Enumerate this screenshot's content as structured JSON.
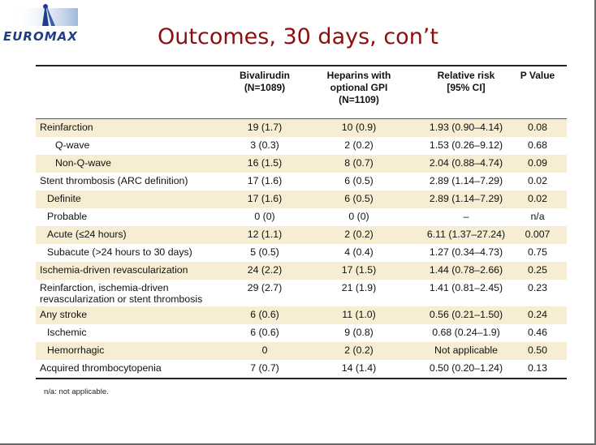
{
  "logo": {
    "text": "EUROMAX"
  },
  "title": "Outcomes, 30 days, con’t",
  "table": {
    "headers": [
      "",
      "Bivalirudin\n(N=1089)",
      "Heparins with\noptional GPI\n(N=1109)",
      "Relative risk\n[95% CI]",
      "P Value"
    ],
    "rows": [
      {
        "label": "Reinfarction",
        "indent": 0,
        "shade": true,
        "biv": "19 (1.7)",
        "hep": "10 (0.9)",
        "rr": "1.93 (0.90–4.14)",
        "p": "0.08"
      },
      {
        "label": "Q-wave",
        "indent": 2,
        "shade": false,
        "biv": "3 (0.3)",
        "hep": "2 (0.2)",
        "rr": "1.53 (0.26–9.12)",
        "p": "0.68"
      },
      {
        "label": "Non-Q-wave",
        "indent": 2,
        "shade": true,
        "biv": "16 (1.5)",
        "hep": "8 (0.7)",
        "rr": "2.04 (0.88–4.74)",
        "p": "0.09"
      },
      {
        "label": "Stent thrombosis (ARC definition)",
        "indent": 0,
        "shade": false,
        "biv": "17 (1.6)",
        "hep": "6 (0.5)",
        "rr": "2.89 (1.14–7.29)",
        "p": "0.02"
      },
      {
        "label": "Definite",
        "indent": 1,
        "shade": true,
        "biv": "17 (1.6)",
        "hep": "6 (0.5)",
        "rr": "2.89 (1.14–7.29)",
        "p": "0.02"
      },
      {
        "label": "Probable",
        "indent": 1,
        "shade": false,
        "biv": "0 (0)",
        "hep": "0 (0)",
        "rr": "–",
        "p": "n/a"
      },
      {
        "label": "Acute (≤24 hours)",
        "indent": 1,
        "shade": true,
        "biv": "12 (1.1)",
        "hep": "2 (0.2)",
        "rr": "6.11 (1.37–27.24)",
        "p": "0.007"
      },
      {
        "label": "Subacute (>24 hours to 30 days)",
        "indent": 1,
        "shade": false,
        "biv": "5 (0.5)",
        "hep": "4 (0.4)",
        "rr": "1.27 (0.34–4.73)",
        "p": "0.75"
      },
      {
        "label": "Ischemia-driven revascularization",
        "indent": 0,
        "shade": true,
        "biv": "24 (2.2)",
        "hep": "17 (1.5)",
        "rr": "1.44 (0.78–2.66)",
        "p": "0.25"
      },
      {
        "label": "Reinfarction, ischemia-driven\nrevascularization or stent thrombosis",
        "indent": 0,
        "shade": false,
        "tall": true,
        "biv": "29 (2.7)",
        "hep": "21 (1.9)",
        "rr": "1.41 (0.81–2.45)",
        "p": "0.23"
      },
      {
        "label": "Any stroke",
        "indent": 0,
        "shade": true,
        "biv": "6 (0.6)",
        "hep": "11 (1.0)",
        "rr": "0.56 (0.21–1.50)",
        "p": "0.24"
      },
      {
        "label": "Ischemic",
        "indent": 1,
        "shade": false,
        "biv": "6 (0.6)",
        "hep": "9 (0.8)",
        "rr": "0.68 (0.24–1.9)",
        "p": "0.46"
      },
      {
        "label": "Hemorrhagic",
        "indent": 1,
        "shade": true,
        "biv": "0",
        "hep": "2 (0.2)",
        "rr": "Not applicable",
        "p": "0.50"
      },
      {
        "label": "Acquired thrombocytopenia",
        "indent": 0,
        "shade": false,
        "biv": "7 (0.7)",
        "hep": "14 (1.4)",
        "rr": "0.50 (0.20–1.24)",
        "p": "0.13"
      }
    ]
  },
  "footnote": "n/a: not applicable.",
  "colors": {
    "title": "#8a0f0f",
    "shade": "#f6edd2",
    "logo": "#1f3d87"
  }
}
